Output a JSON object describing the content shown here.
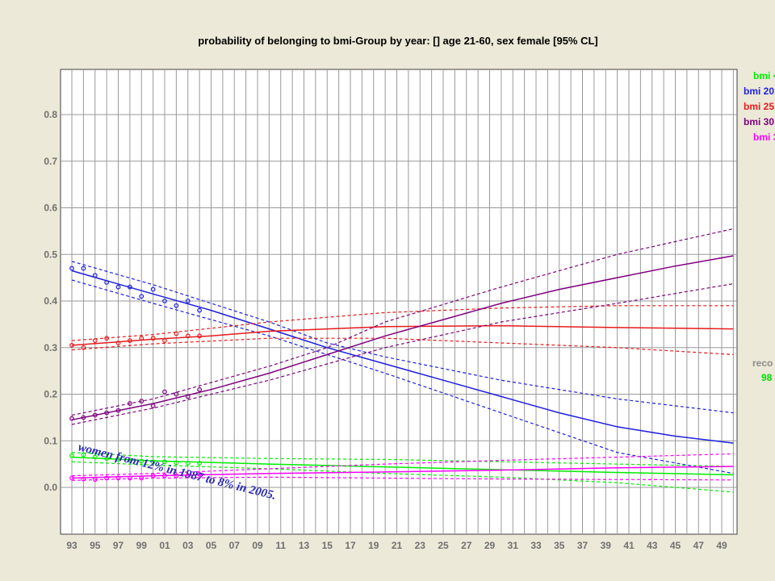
{
  "chart_data": {
    "type": "line",
    "title": "probability of belonging to bmi-Group by year: []  age 21-60, sex female  [95% CL]",
    "x_range": [
      1993,
      2050
    ],
    "ylim": [
      -0.1,
      0.9
    ],
    "x_tick_labels": [
      "93",
      "95",
      "97",
      "99",
      "01",
      "03",
      "05",
      "07",
      "09",
      "11",
      "13",
      "15",
      "17",
      "19",
      "21",
      "23",
      "25",
      "27",
      "29",
      "31",
      "33",
      "35",
      "37",
      "39",
      "41",
      "43",
      "45",
      "47",
      "49"
    ],
    "y_tick_labels": [
      "0.0",
      "0.1",
      "0.2",
      "0.3",
      "0.4",
      "0.5",
      "0.6",
      "0.7",
      "0.8"
    ],
    "grid": true,
    "legend_position": "right (clipped)",
    "legend_entries": [
      "bmi <",
      "bmi 20",
      "bmi 25",
      "bmi 30",
      "bmi 3"
    ],
    "side_text": [
      "reco",
      "98"
    ],
    "annotation": "women from 12% in 1987 to 8% in 2005.",
    "series": [
      {
        "name": "bmi <",
        "color": "#00ee00",
        "fit": [
          [
            1993,
            0.065
          ],
          [
            2000,
            0.057
          ],
          [
            2010,
            0.05
          ],
          [
            2020,
            0.044
          ],
          [
            2030,
            0.038
          ],
          [
            2040,
            0.032
          ],
          [
            2050,
            0.027
          ]
        ],
        "upper": [
          [
            1993,
            0.075
          ],
          [
            2000,
            0.066
          ],
          [
            2010,
            0.062
          ],
          [
            2020,
            0.06
          ],
          [
            2030,
            0.055
          ],
          [
            2040,
            0.05
          ],
          [
            2050,
            0.045
          ]
        ],
        "lower": [
          [
            1993,
            0.055
          ],
          [
            2000,
            0.048
          ],
          [
            2010,
            0.04
          ],
          [
            2020,
            0.03
          ],
          [
            2030,
            0.022
          ],
          [
            2040,
            0.01
          ],
          [
            2050,
            -0.01
          ]
        ],
        "observed": [
          [
            1993,
            0.068
          ],
          [
            1994,
            0.07
          ],
          [
            1995,
            0.065
          ],
          [
            1996,
            0.062
          ],
          [
            1997,
            0.06
          ],
          [
            1998,
            0.058
          ],
          [
            1999,
            0.056
          ],
          [
            2000,
            0.055
          ],
          [
            2001,
            0.055
          ],
          [
            2002,
            0.053
          ],
          [
            2003,
            0.052
          ],
          [
            2004,
            0.052
          ]
        ]
      },
      {
        "name": "bmi 20",
        "color": "#1f1fe0",
        "fit": [
          [
            1993,
            0.465
          ],
          [
            2000,
            0.415
          ],
          [
            2005,
            0.38
          ],
          [
            2010,
            0.34
          ],
          [
            2015,
            0.3
          ],
          [
            2020,
            0.265
          ],
          [
            2025,
            0.23
          ],
          [
            2030,
            0.195
          ],
          [
            2035,
            0.16
          ],
          [
            2040,
            0.13
          ],
          [
            2045,
            0.11
          ],
          [
            2050,
            0.095
          ]
        ],
        "upper": [
          [
            1993,
            0.485
          ],
          [
            2000,
            0.435
          ],
          [
            2010,
            0.355
          ],
          [
            2015,
            0.31
          ],
          [
            2020,
            0.28
          ],
          [
            2030,
            0.23
          ],
          [
            2040,
            0.19
          ],
          [
            2050,
            0.16
          ]
        ],
        "lower": [
          [
            1993,
            0.445
          ],
          [
            2000,
            0.395
          ],
          [
            2010,
            0.325
          ],
          [
            2015,
            0.285
          ],
          [
            2020,
            0.245
          ],
          [
            2030,
            0.16
          ],
          [
            2040,
            0.075
          ],
          [
            2050,
            0.03
          ]
        ],
        "observed": [
          [
            1993,
            0.47
          ],
          [
            1994,
            0.47
          ],
          [
            1995,
            0.455
          ],
          [
            1996,
            0.44
          ],
          [
            1997,
            0.43
          ],
          [
            1998,
            0.43
          ],
          [
            1999,
            0.41
          ],
          [
            2000,
            0.425
          ],
          [
            2001,
            0.4
          ],
          [
            2002,
            0.39
          ],
          [
            2003,
            0.4
          ],
          [
            2004,
            0.38
          ]
        ]
      },
      {
        "name": "bmi 25",
        "color": "#e81b1b",
        "fit": [
          [
            1993,
            0.305
          ],
          [
            2000,
            0.318
          ],
          [
            2005,
            0.325
          ],
          [
            2010,
            0.335
          ],
          [
            2020,
            0.345
          ],
          [
            2030,
            0.347
          ],
          [
            2040,
            0.343
          ],
          [
            2050,
            0.34
          ]
        ],
        "upper": [
          [
            1993,
            0.315
          ],
          [
            2000,
            0.328
          ],
          [
            2010,
            0.355
          ],
          [
            2020,
            0.375
          ],
          [
            2030,
            0.385
          ],
          [
            2040,
            0.39
          ],
          [
            2050,
            0.39
          ]
        ],
        "lower": [
          [
            1993,
            0.295
          ],
          [
            2000,
            0.308
          ],
          [
            2010,
            0.32
          ],
          [
            2020,
            0.32
          ],
          [
            2030,
            0.31
          ],
          [
            2040,
            0.3
          ],
          [
            2050,
            0.285
          ]
        ],
        "observed": [
          [
            1993,
            0.305
          ],
          [
            1994,
            0.3
          ],
          [
            1995,
            0.315
          ],
          [
            1996,
            0.32
          ],
          [
            1997,
            0.31
          ],
          [
            1998,
            0.315
          ],
          [
            1999,
            0.32
          ],
          [
            2000,
            0.32
          ],
          [
            2001,
            0.315
          ],
          [
            2002,
            0.33
          ],
          [
            2003,
            0.325
          ],
          [
            2004,
            0.325
          ]
        ]
      },
      {
        "name": "bmi 30",
        "color": "#800080",
        "fit": [
          [
            1993,
            0.145
          ],
          [
            2000,
            0.18
          ],
          [
            2005,
            0.21
          ],
          [
            2010,
            0.245
          ],
          [
            2015,
            0.285
          ],
          [
            2020,
            0.325
          ],
          [
            2025,
            0.36
          ],
          [
            2030,
            0.395
          ],
          [
            2035,
            0.425
          ],
          [
            2040,
            0.45
          ],
          [
            2045,
            0.475
          ],
          [
            2050,
            0.497
          ]
        ],
        "upper": [
          [
            1993,
            0.155
          ],
          [
            2000,
            0.19
          ],
          [
            2010,
            0.26
          ],
          [
            2015,
            0.3
          ],
          [
            2020,
            0.355
          ],
          [
            2030,
            0.43
          ],
          [
            2040,
            0.5
          ],
          [
            2050,
            0.555
          ]
        ],
        "lower": [
          [
            1993,
            0.135
          ],
          [
            2000,
            0.17
          ],
          [
            2010,
            0.23
          ],
          [
            2015,
            0.265
          ],
          [
            2020,
            0.3
          ],
          [
            2030,
            0.355
          ],
          [
            2040,
            0.395
          ],
          [
            2050,
            0.437
          ]
        ],
        "observed": [
          [
            1993,
            0.148
          ],
          [
            1994,
            0.15
          ],
          [
            1995,
            0.155
          ],
          [
            1996,
            0.16
          ],
          [
            1997,
            0.165
          ],
          [
            1998,
            0.18
          ],
          [
            1999,
            0.185
          ],
          [
            2000,
            0.175
          ],
          [
            2001,
            0.205
          ],
          [
            2002,
            0.2
          ],
          [
            2003,
            0.195
          ],
          [
            2004,
            0.21
          ]
        ]
      },
      {
        "name": "bmi 3",
        "color": "#ff00ff",
        "fit": [
          [
            1993,
            0.02
          ],
          [
            2000,
            0.025
          ],
          [
            2010,
            0.03
          ],
          [
            2020,
            0.033
          ],
          [
            2030,
            0.037
          ],
          [
            2040,
            0.042
          ],
          [
            2050,
            0.045
          ]
        ],
        "upper": [
          [
            1993,
            0.025
          ],
          [
            2000,
            0.03
          ],
          [
            2010,
            0.04
          ],
          [
            2020,
            0.05
          ],
          [
            2030,
            0.058
          ],
          [
            2040,
            0.065
          ],
          [
            2050,
            0.072
          ]
        ],
        "lower": [
          [
            1993,
            0.015
          ],
          [
            2000,
            0.02
          ],
          [
            2010,
            0.022
          ],
          [
            2020,
            0.02
          ],
          [
            2030,
            0.018
          ],
          [
            2040,
            0.017
          ],
          [
            2050,
            0.016
          ]
        ],
        "observed": [
          [
            1993,
            0.02
          ],
          [
            1994,
            0.018
          ],
          [
            1995,
            0.017
          ],
          [
            1996,
            0.02
          ],
          [
            1997,
            0.02
          ],
          [
            1998,
            0.02
          ],
          [
            1999,
            0.02
          ],
          [
            2000,
            0.025
          ],
          [
            2001,
            0.025
          ],
          [
            2002,
            0.025
          ],
          [
            2003,
            0.025
          ],
          [
            2004,
            0.028
          ]
        ]
      }
    ]
  }
}
